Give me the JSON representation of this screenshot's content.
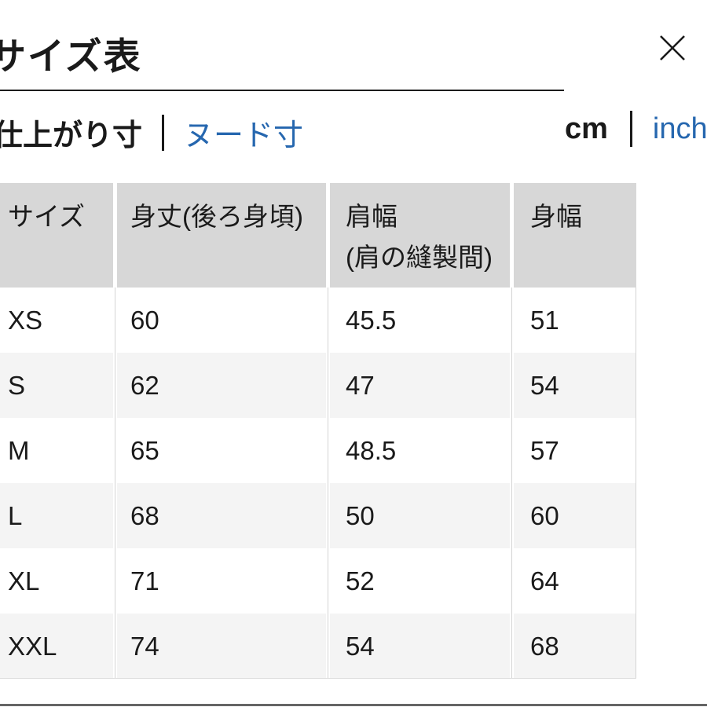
{
  "modal": {
    "title": "サイズ表"
  },
  "tabs": {
    "separator": "|",
    "measure": [
      {
        "label": "仕上がり寸",
        "active": true
      },
      {
        "label": "ヌード寸",
        "active": false
      }
    ],
    "units": [
      {
        "label": "cm",
        "active": true
      },
      {
        "label": "inch",
        "active": false
      }
    ]
  },
  "table": {
    "columns": [
      {
        "label": "サイズ",
        "sublabel": ""
      },
      {
        "label": "身丈(後ろ身頃)",
        "sublabel": ""
      },
      {
        "label": "肩幅",
        "sublabel": "(肩の縫製間)"
      },
      {
        "label": "身幅",
        "sublabel": ""
      }
    ],
    "rows": [
      {
        "size": "XS",
        "values": [
          "60",
          "45.5",
          "51"
        ]
      },
      {
        "size": "S",
        "values": [
          "62",
          "47",
          "54"
        ]
      },
      {
        "size": "M",
        "values": [
          "65",
          "48.5",
          "57"
        ]
      },
      {
        "size": "L",
        "values": [
          "68",
          "50",
          "60"
        ]
      },
      {
        "size": "XL",
        "values": [
          "71",
          "52",
          "64"
        ]
      },
      {
        "size": "XXL",
        "values": [
          "74",
          "54",
          "68"
        ]
      }
    ],
    "unit": "cm"
  },
  "colors": {
    "text": "#1a1a1a",
    "link_blue": "#2667af",
    "header_bg": "#d7d7d7",
    "row_alt_bg": "#f4f4f4"
  }
}
